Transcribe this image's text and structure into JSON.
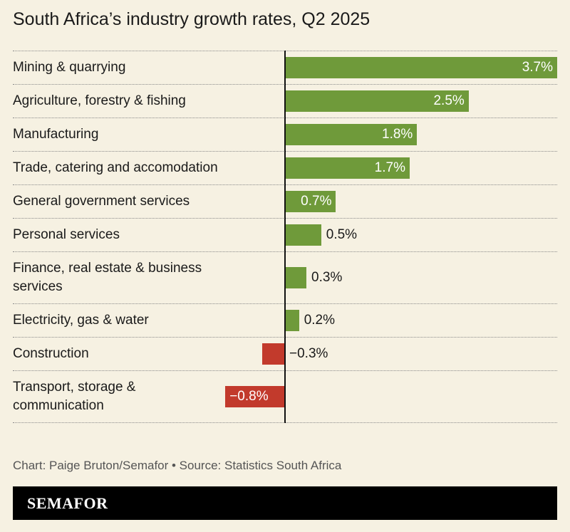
{
  "chart_data": {
    "type": "bar",
    "orientation": "horizontal",
    "title": "South Africa’s industry growth rates, Q2 2025",
    "categories": [
      "Mining & quarrying",
      "Agriculture, forestry & fishing",
      "Manufacturing",
      "Trade, catering and accomodation",
      "General government services",
      "Personal services",
      "Finance, real estate & business services",
      "Electricity, gas & water",
      "Construction",
      "Transport, storage & communication"
    ],
    "values": [
      3.7,
      2.5,
      1.8,
      1.7,
      0.7,
      0.5,
      0.3,
      0.2,
      -0.3,
      -0.8
    ],
    "value_labels": [
      "3.7%",
      "2.5%",
      "1.8%",
      "1.7%",
      "0.7%",
      "0.5%",
      "0.3%",
      "0.2%",
      "−0.3%",
      "−0.8%"
    ],
    "color": "#6f9a3a",
    "negative_color": "#c23a2c",
    "source": "Chart: Paige Bruton/Semafor • Source: Statistics South Africa",
    "brand": "SEMAFOR"
  }
}
